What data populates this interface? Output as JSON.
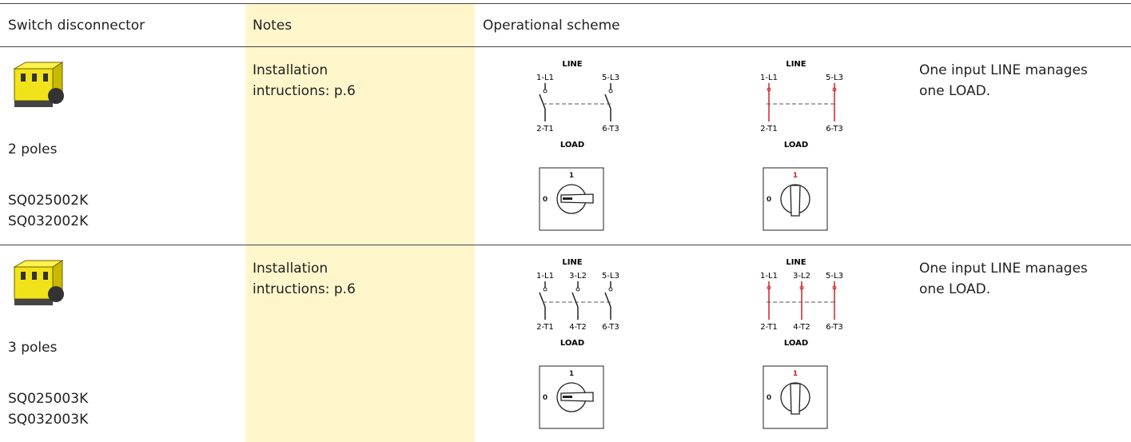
{
  "header": {
    "columns": [
      "Switch disconnector",
      "Notes",
      "Operational scheme"
    ]
  },
  "rows": [
    {
      "poles": "2 poles",
      "codes": [
        "SQ025002K",
        "SQ032002K"
      ],
      "notes": "Installation intructions: p.6",
      "scheme": {
        "top": "LINE",
        "bottom": "LOAD",
        "inputs": [
          "1-L1",
          "5-L3"
        ],
        "outputs": [
          "2-T1",
          "6-T3"
        ],
        "positions": [
          "0",
          "1"
        ]
      },
      "description": "One input LINE manages one LOAD."
    },
    {
      "poles": "3 poles",
      "codes": [
        "SQ025003K",
        "SQ032003K"
      ],
      "notes": "Installation intructions: p.6",
      "scheme": {
        "top": "LINE",
        "bottom": "LOAD",
        "inputs": [
          "1-L1",
          "3-L2",
          "5-L3"
        ],
        "outputs": [
          "2-T1",
          "4-T2",
          "6-T3"
        ],
        "positions": [
          "0",
          "1"
        ]
      },
      "description": "One input LINE manages one LOAD."
    }
  ]
}
